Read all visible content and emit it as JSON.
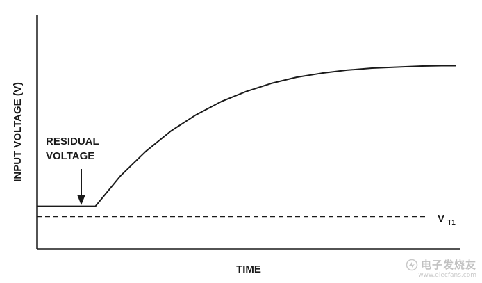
{
  "chart_data": {
    "type": "line",
    "ylabel": "INPUT VOLTAGE (V)",
    "xlabel": "TIME",
    "annotations": [
      {
        "name": "residual",
        "lines": [
          "RESIDUAL",
          "VOLTAGE"
        ]
      },
      {
        "name": "vt1",
        "main": "V",
        "sub": "T1"
      }
    ],
    "series": [
      {
        "style": "solid",
        "x": [
          0,
          0.07,
          0.14,
          0.2,
          0.26,
          0.32,
          0.38,
          0.44,
          0.5,
          0.56,
          0.62,
          0.68,
          0.74,
          0.8,
          0.86,
          0.92,
          0.97,
          1.0
        ],
        "y": [
          0.21,
          0.21,
          0.21,
          0.36,
          0.48,
          0.58,
          0.66,
          0.725,
          0.775,
          0.815,
          0.845,
          0.865,
          0.88,
          0.89,
          0.895,
          0.9,
          0.902,
          0.902
        ]
      },
      {
        "style": "dashed",
        "x": [
          0,
          1.0
        ],
        "y": [
          0.16,
          0.16
        ]
      }
    ],
    "xlim": [
      0,
      1
    ],
    "ylim": [
      0,
      1.15
    ],
    "grid": false,
    "ticks": false
  },
  "watermark": {
    "brand": "电子发烧友",
    "url": "www.elecfans.com"
  }
}
